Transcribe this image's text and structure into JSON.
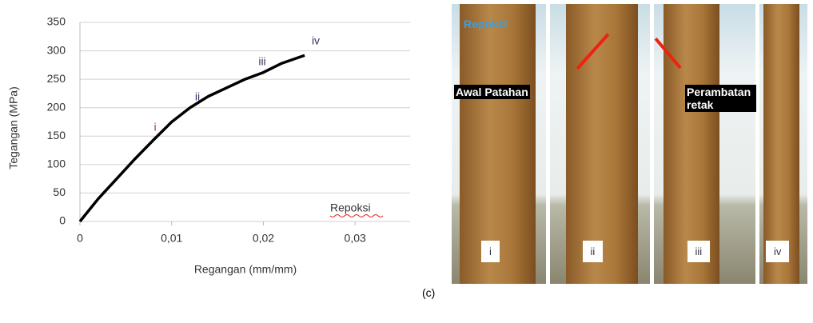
{
  "chart_data": {
    "type": "line",
    "x_label": "Regangan (mm/mm)",
    "y_label": "Tegangan (MPa)",
    "x": [
      0,
      0.002,
      0.004,
      0.006,
      0.008,
      0.01,
      0.012,
      0.014,
      0.016,
      0.018,
      0.02,
      0.022,
      0.0245
    ],
    "series": [
      {
        "name": "Repoksi",
        "color": "#000000",
        "values": [
          0,
          40,
          75,
          110,
          143,
          175,
          200,
          220,
          235,
          250,
          262,
          278,
          292
        ]
      }
    ],
    "xlim": [
      0,
      0.036
    ],
    "xticks": [
      0,
      {
        "value": 0.01,
        "label": "0,01"
      },
      {
        "value": 0.02,
        "label": "0,02"
      },
      {
        "value": 0.03,
        "label": "0,03"
      }
    ],
    "ylim": [
      0,
      350
    ],
    "yticks": [
      0,
      50,
      100,
      150,
      200,
      250,
      300,
      350
    ],
    "grid": true,
    "annotations": [
      "i",
      "ii",
      "iii",
      "iv"
    ]
  },
  "photo_panel": {
    "legend": "Repoksi",
    "labels": [
      "Awal Patahan",
      "Perambatan retak"
    ],
    "frames": [
      "i",
      "ii",
      "iii",
      "iv"
    ]
  },
  "caption": "(c)"
}
